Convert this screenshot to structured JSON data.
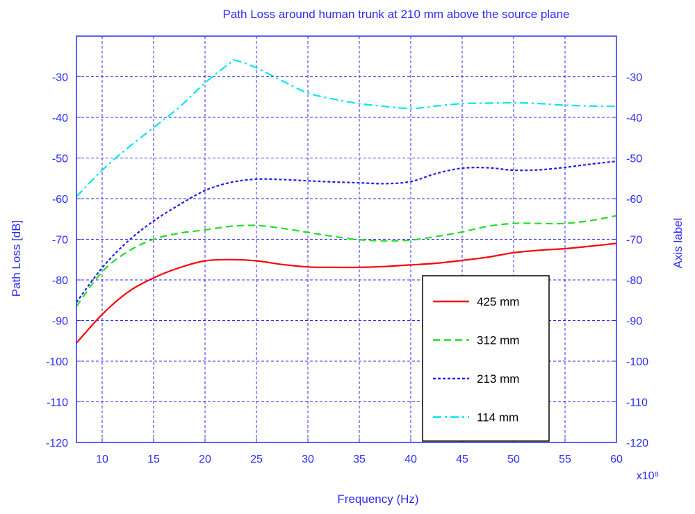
{
  "chart_data": {
    "type": "line",
    "title": "Path Loss around human trunk at  210 mm above the source plane",
    "xlabel": "Frequency (Hz)",
    "ylabel": "Path Loss [dB]",
    "ylabel_right": "Axis label",
    "x_multiplier": "x10⁸",
    "xlim": [
      7.5,
      60
    ],
    "ylim": [
      -120,
      -20
    ],
    "x_ticks": [
      10,
      15,
      20,
      25,
      30,
      35,
      40,
      45,
      50,
      55,
      60
    ],
    "y_ticks": [
      -120,
      -110,
      -100,
      -90,
      -80,
      -70,
      -60,
      -50,
      -40,
      -30
    ],
    "grid": true,
    "legend_position": "bottom-right",
    "colors": {
      "axes": "#2a2aff",
      "grid": "#2a2aff",
      "text": "#2a2aff",
      "legend_border": "#000000"
    },
    "series": [
      {
        "name": "425 mm",
        "color": "#ff0000",
        "style": "solid",
        "x": [
          7.5,
          10,
          12.5,
          15,
          17.5,
          20,
          22.5,
          25,
          27.5,
          30,
          32.5,
          35,
          37.5,
          40,
          42.5,
          45,
          47.5,
          50,
          52.5,
          55,
          57.5,
          60
        ],
        "y": [
          -95.5,
          -88.5,
          -83,
          -79.5,
          -77,
          -75.3,
          -75,
          -75.3,
          -76.2,
          -76.8,
          -76.9,
          -76.9,
          -76.7,
          -76.3,
          -75.9,
          -75.2,
          -74.4,
          -73.3,
          -72.7,
          -72.3,
          -71.7,
          -71
        ]
      },
      {
        "name": "312 mm",
        "color": "#22dd22",
        "style": "dashed",
        "x": [
          7.5,
          10,
          12.5,
          15,
          17.5,
          20,
          22.5,
          25,
          27.5,
          30,
          32.5,
          35,
          37.5,
          40,
          42.5,
          45,
          47.5,
          50,
          52.5,
          55,
          57.5,
          60
        ],
        "y": [
          -86.5,
          -78,
          -73,
          -70,
          -68.5,
          -67.7,
          -66.8,
          -66.6,
          -67.3,
          -68.3,
          -69.3,
          -70.1,
          -70.4,
          -70.2,
          -69.3,
          -68.2,
          -66.8,
          -66.1,
          -66.1,
          -66.1,
          -65.4,
          -64.2
        ]
      },
      {
        "name": "213 mm",
        "color": "#1a1aee",
        "style": "dotted",
        "x": [
          7.5,
          10,
          12.5,
          15,
          17.5,
          20,
          22.5,
          25,
          27.5,
          30,
          32.5,
          35,
          37.5,
          40,
          42.5,
          45,
          47.5,
          50,
          52.5,
          55,
          57.5,
          60
        ],
        "y": [
          -85.5,
          -77,
          -70.5,
          -65.5,
          -61.5,
          -58,
          -56,
          -55.2,
          -55.3,
          -55.6,
          -55.9,
          -56.1,
          -56.3,
          -55.8,
          -53.8,
          -52.5,
          -52.4,
          -53,
          -52.9,
          -52.3,
          -51.5,
          -50.8
        ]
      },
      {
        "name": "114 mm",
        "color": "#00e5ee",
        "style": "dashdot",
        "x": [
          7.5,
          10,
          12.5,
          15,
          17.5,
          20,
          22.5,
          23,
          25,
          27.5,
          30,
          32.5,
          35,
          37.5,
          40,
          42.5,
          45,
          47.5,
          50,
          52.5,
          55,
          57.5,
          60
        ],
        "y": [
          -59.5,
          -53,
          -47.5,
          -42.5,
          -37.5,
          -31.5,
          -26.5,
          -26,
          -27.8,
          -31,
          -34,
          -35.5,
          -36.6,
          -37.3,
          -37.8,
          -37.2,
          -36.6,
          -36.5,
          -36.4,
          -36.6,
          -37,
          -37.2,
          -37.3
        ]
      }
    ]
  }
}
